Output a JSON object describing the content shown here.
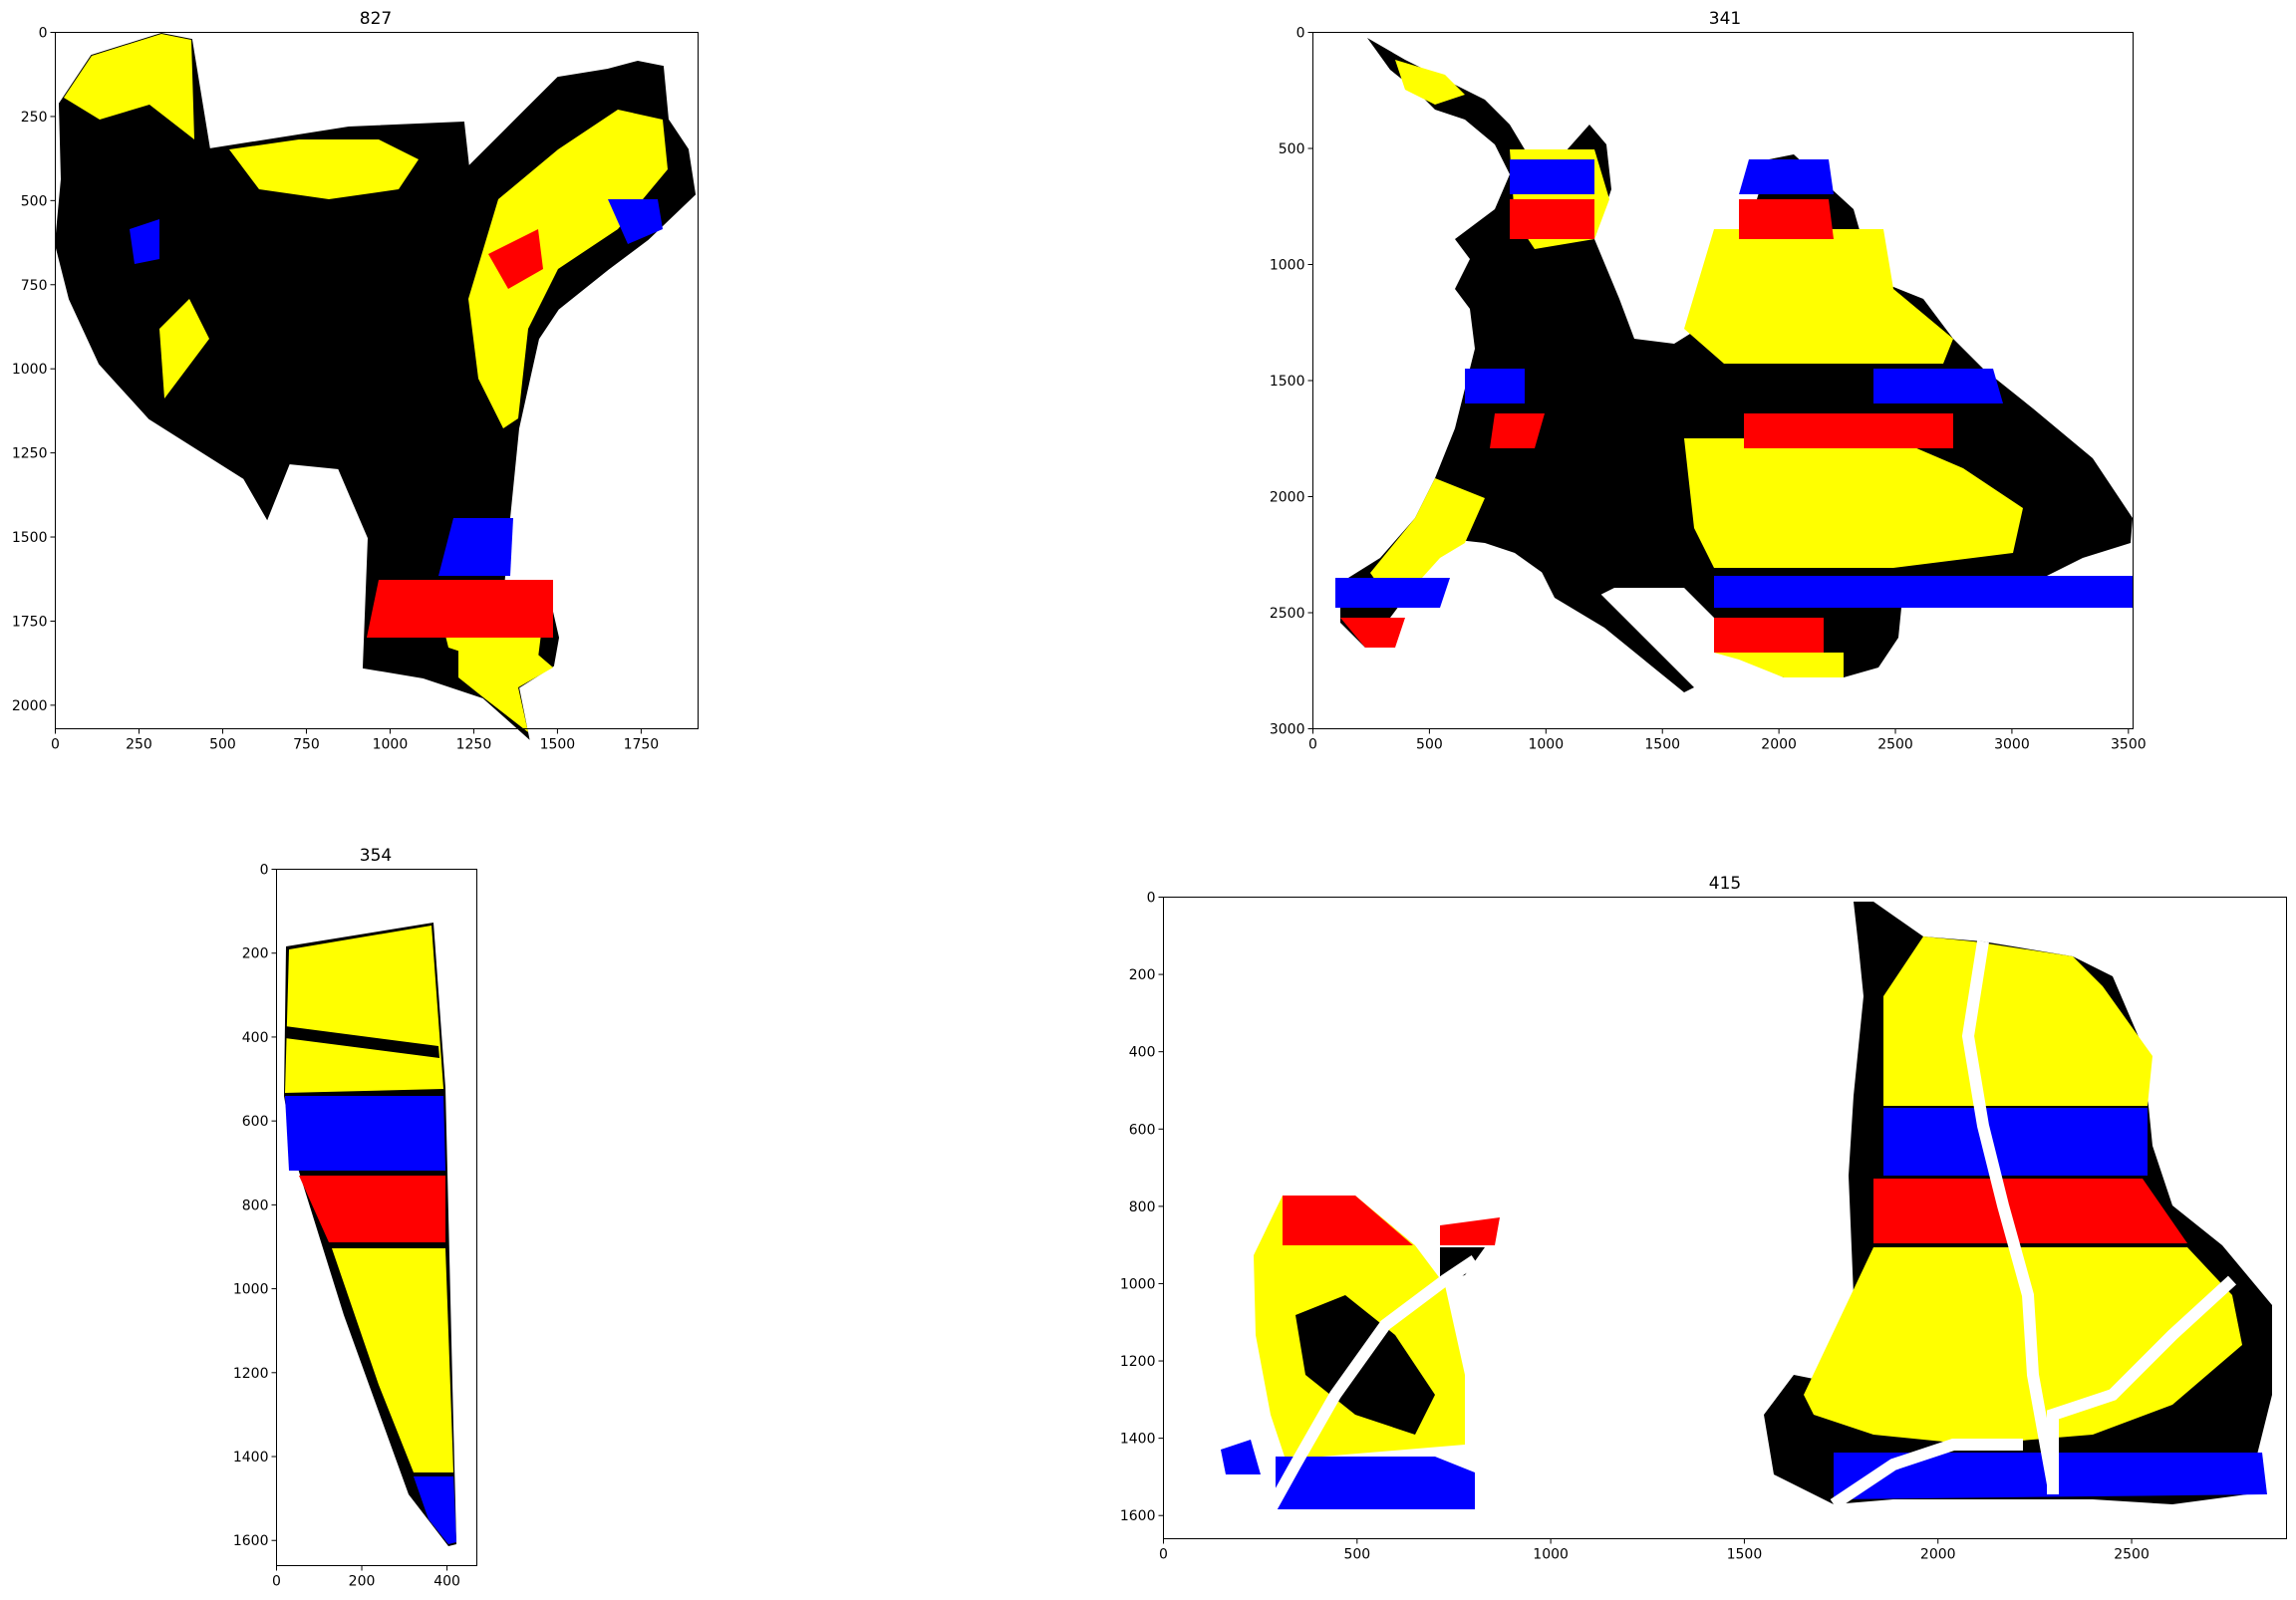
{
  "chart_data": [
    {
      "type": "image",
      "title": "827",
      "xlim": [
        0,
        1920
      ],
      "ylim": [
        2070,
        0
      ],
      "xticks": [
        0,
        250,
        500,
        750,
        1000,
        1250,
        1500,
        1750
      ],
      "yticks": [
        0,
        250,
        500,
        750,
        1000,
        1250,
        1500,
        1750,
        2000
      ],
      "legend": []
    },
    {
      "type": "image",
      "title": "341",
      "xlim": [
        0,
        3520
      ],
      "ylim": [
        3000,
        0
      ],
      "xticks": [
        0,
        500,
        1000,
        1500,
        2000,
        2500,
        3000,
        3500
      ],
      "yticks": [
        0,
        500,
        1000,
        1500,
        2000,
        2500,
        3000
      ],
      "legend": []
    },
    {
      "type": "image",
      "title": "354",
      "xlim": [
        0,
        470
      ],
      "ylim": [
        1660,
        0
      ],
      "xticks": [
        0,
        200,
        400
      ],
      "yticks": [
        0,
        200,
        400,
        600,
        800,
        1000,
        1200,
        1400,
        1600
      ],
      "legend": []
    },
    {
      "type": "image",
      "title": "415",
      "xlim": [
        0,
        2900
      ],
      "ylim": [
        1660,
        0
      ],
      "xticks": [
        0,
        500,
        1000,
        1500,
        2000,
        2500
      ],
      "yticks": [
        0,
        200,
        400,
        600,
        800,
        1000,
        1200,
        1400,
        1600
      ],
      "legend": []
    }
  ],
  "colors": {
    "yellow": "#ffff00",
    "black": "#000000",
    "blue": "#0000ff",
    "red": "#ff0000",
    "white": "#ffffff"
  }
}
